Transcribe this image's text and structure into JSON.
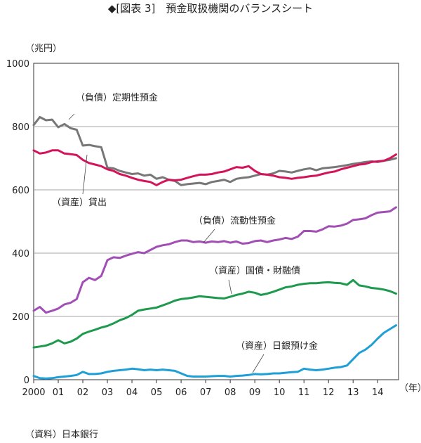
{
  "chart_data": {
    "type": "line",
    "title": "◆[図表 3]　預金取扱機関のバランスシート",
    "y_unit": "（兆円）",
    "x_unit": "（年）",
    "ylim": [
      0,
      1000
    ],
    "y_ticks": [
      0,
      200,
      400,
      600,
      800,
      1000
    ],
    "x_ticks": [
      "2000",
      "01",
      "02",
      "03",
      "04",
      "05",
      "06",
      "07",
      "08",
      "09",
      "10",
      "11",
      "12",
      "13",
      "14"
    ],
    "grid": "horizontal",
    "source": "（資料）日本銀行",
    "x_quarters": [
      2000.0,
      2000.25,
      2000.5,
      2000.75,
      2001.0,
      2001.25,
      2001.5,
      2001.75,
      2002.0,
      2002.25,
      2002.5,
      2002.75,
      2003.0,
      2003.25,
      2003.5,
      2003.75,
      2004.0,
      2004.25,
      2004.5,
      2004.75,
      2005.0,
      2005.25,
      2005.5,
      2005.75,
      2006.0,
      2006.25,
      2006.5,
      2006.75,
      2007.0,
      2007.25,
      2007.5,
      2007.75,
      2008.0,
      2008.25,
      2008.5,
      2008.75,
      2009.0,
      2009.25,
      2009.5,
      2009.75,
      2010.0,
      2010.25,
      2010.5,
      2010.75,
      2011.0,
      2011.25,
      2011.5,
      2011.75,
      2012.0,
      2012.25,
      2012.5,
      2012.75,
      2013.0,
      2013.25,
      2013.5,
      2013.75,
      2014.0,
      2014.25,
      2014.5,
      2014.75
    ],
    "series": [
      {
        "name": "（負債）定期性預金",
        "color": "#777777",
        "values": [
          805,
          830,
          820,
          822,
          798,
          808,
          795,
          790,
          740,
          742,
          738,
          735,
          670,
          668,
          660,
          655,
          650,
          652,
          645,
          648,
          635,
          640,
          632,
          628,
          615,
          618,
          620,
          622,
          618,
          625,
          628,
          632,
          625,
          635,
          638,
          640,
          645,
          650,
          648,
          652,
          660,
          658,
          655,
          660,
          665,
          668,
          662,
          668,
          670,
          672,
          675,
          678,
          682,
          685,
          688,
          690,
          688,
          692,
          695,
          700
        ]
      },
      {
        "name": "（資産）貸出",
        "color": "#d4145a",
        "values": [
          725,
          715,
          718,
          725,
          725,
          715,
          713,
          710,
          695,
          685,
          680,
          675,
          665,
          660,
          650,
          645,
          638,
          632,
          628,
          625,
          615,
          625,
          632,
          630,
          632,
          638,
          643,
          648,
          648,
          650,
          655,
          658,
          665,
          672,
          670,
          675,
          660,
          650,
          648,
          645,
          640,
          638,
          635,
          638,
          640,
          643,
          645,
          650,
          655,
          658,
          665,
          670,
          675,
          680,
          682,
          688,
          690,
          692,
          700,
          712
        ]
      },
      {
        "name": "（負債）流動性預金",
        "color": "#a14fb5",
        "values": [
          218,
          230,
          212,
          218,
          225,
          238,
          243,
          255,
          308,
          322,
          315,
          328,
          378,
          387,
          385,
          392,
          398,
          403,
          400,
          410,
          420,
          425,
          428,
          435,
          440,
          440,
          435,
          437,
          433,
          437,
          435,
          438,
          433,
          437,
          430,
          432,
          438,
          440,
          435,
          440,
          443,
          448,
          445,
          452,
          470,
          470,
          468,
          475,
          485,
          484,
          487,
          493,
          505,
          507,
          510,
          520,
          528,
          530,
          532,
          545
        ]
      },
      {
        "name": "（資産）国債・財融債",
        "color": "#1d9a4d",
        "values": [
          102,
          105,
          108,
          115,
          125,
          115,
          120,
          130,
          145,
          152,
          158,
          165,
          170,
          178,
          188,
          195,
          205,
          218,
          222,
          225,
          228,
          235,
          242,
          250,
          255,
          257,
          260,
          264,
          262,
          260,
          258,
          257,
          262,
          268,
          272,
          278,
          275,
          268,
          272,
          278,
          285,
          292,
          295,
          300,
          303,
          305,
          305,
          307,
          308,
          306,
          305,
          300,
          315,
          298,
          295,
          290,
          288,
          285,
          280,
          272
        ]
      },
      {
        "name": "（資産）日銀預け金",
        "color": "#1e9fd6",
        "values": [
          12,
          5,
          4,
          5,
          8,
          10,
          12,
          15,
          25,
          18,
          18,
          20,
          25,
          28,
          30,
          32,
          35,
          33,
          30,
          32,
          30,
          32,
          30,
          28,
          20,
          12,
          10,
          10,
          10,
          11,
          12,
          12,
          10,
          12,
          13,
          15,
          18,
          17,
          18,
          20,
          20,
          22,
          24,
          25,
          35,
          32,
          30,
          32,
          35,
          38,
          40,
          45,
          65,
          85,
          95,
          110,
          130,
          148,
          160,
          172
        ]
      }
    ]
  }
}
